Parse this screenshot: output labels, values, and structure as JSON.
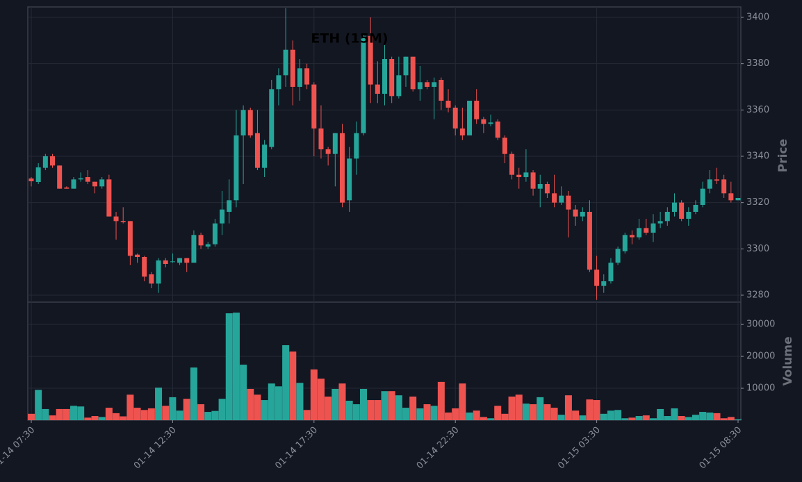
{
  "chart_data": {
    "type": "candlestick",
    "title": "ETH (15M)",
    "categories": [
      "01-14 07:30",
      null,
      null,
      null,
      null,
      null,
      null,
      null,
      null,
      null,
      null,
      null,
      null,
      null,
      null,
      null,
      null,
      null,
      null,
      null,
      "01-14 12:30",
      null,
      null,
      null,
      null,
      null,
      null,
      null,
      null,
      null,
      null,
      null,
      null,
      null,
      null,
      null,
      null,
      null,
      null,
      null,
      "01-14 17:30",
      null,
      null,
      null,
      null,
      null,
      null,
      null,
      null,
      null,
      null,
      null,
      null,
      null,
      null,
      null,
      null,
      null,
      null,
      null,
      "01-14 22:30",
      null,
      null,
      null,
      null,
      null,
      null,
      null,
      null,
      null,
      null,
      null,
      null,
      null,
      null,
      null,
      null,
      null,
      null,
      null,
      "01-15 03:30",
      null,
      null,
      null,
      null,
      null,
      null,
      null,
      null,
      null,
      null,
      null,
      null,
      null,
      null,
      null,
      null,
      null,
      null,
      null,
      "01-15 08:30"
    ],
    "open": [
      3330.4,
      3328.9,
      3335,
      3340,
      3336,
      3326.5,
      3326,
      3330,
      3331,
      3329,
      3327,
      3330,
      3314,
      3312,
      3312,
      3297.5,
      3296.5,
      3289,
      3285,
      3295,
      3294.5,
      3294,
      3296,
      3294,
      3306,
      3301,
      3302,
      3311,
      3316,
      3321,
      3349,
      3360,
      3350,
      3335,
      3344,
      3369,
      3375,
      3386,
      3370,
      3378,
      3371,
      3352,
      3343,
      3341,
      3350,
      3321,
      3339,
      3350,
      3392,
      3371,
      3367,
      3382,
      3366,
      3375,
      3383,
      3369,
      3372,
      3370,
      3373,
      3364,
      3361,
      3352,
      3349,
      3364,
      3356,
      3354,
      3355,
      3348,
      3341,
      3332,
      3331,
      3333,
      3326,
      3328,
      3324,
      3320,
      3323,
      3317,
      3314,
      3316,
      3291,
      3284,
      3286,
      3294,
      3299,
      3306,
      3305,
      3309,
      3307,
      3311,
      3312,
      3316,
      3320,
      3313,
      3316,
      3319,
      3326,
      3330,
      3330,
      3324,
      3321
    ],
    "high": [
      3331,
      3337,
      3341,
      3341,
      3336,
      3327,
      3331,
      3333,
      3334,
      3329,
      3331,
      3332,
      3316,
      3318,
      3312,
      3298,
      3297,
      3290,
      3296,
      3296,
      3298,
      3296,
      3296,
      3308,
      3307,
      3303,
      3313,
      3325,
      3330,
      3360,
      3362,
      3361,
      3360,
      3347,
      3373,
      3378,
      3404,
      3390,
      3382,
      3380,
      3372,
      3362,
      3344,
      3350,
      3354,
      3344,
      3355,
      3393,
      3400,
      3381,
      3388,
      3383,
      3383,
      3383,
      3383,
      3379,
      3373,
      3374,
      3374,
      3369,
      3362,
      3361,
      3364,
      3369,
      3357,
      3358,
      3356,
      3349,
      3342,
      3335,
      3343,
      3334,
      3332,
      3329,
      3332,
      3327,
      3325,
      3319,
      3318,
      3321,
      3297,
      3289,
      3296,
      3301,
      3307,
      3308,
      3313,
      3313,
      3315,
      3316,
      3318,
      3324,
      3321,
      3318,
      3321,
      3329,
      3334,
      3335,
      3332,
      3329,
      3322
    ],
    "low": [
      3327,
      3328,
      3334,
      3335,
      3326,
      3326,
      3326,
      3329,
      3328,
      3324,
      3326,
      3314,
      3304,
      3311,
      3293,
      3294,
      3286,
      3283,
      3281,
      3292,
      3294,
      3293,
      3290,
      3294,
      3300,
      3300,
      3301,
      3306,
      3311,
      3318,
      3328,
      3348,
      3334,
      3331,
      3343,
      3362,
      3370,
      3362,
      3364,
      3369,
      3340,
      3339,
      3336,
      3327,
      3318,
      3316,
      3332,
      3349,
      3363,
      3363,
      3362,
      3363,
      3365,
      3370,
      3368,
      3364,
      3369,
      3356,
      3360,
      3359,
      3349,
      3347,
      3349,
      3354,
      3350,
      3353,
      3347,
      3337,
      3330,
      3326,
      3329,
      3323,
      3318,
      3322,
      3318,
      3319,
      3305,
      3310,
      3312,
      3290,
      3278,
      3281,
      3285,
      3293,
      3298,
      3302,
      3304,
      3306,
      3303,
      3309,
      3310,
      3314,
      3312,
      3310,
      3315,
      3318,
      3324,
      3328,
      3322,
      3320,
      3321
    ],
    "close": [
      3329.2,
      3335.2,
      3340,
      3336,
      3326,
      3326,
      3330,
      3330.5,
      3329,
      3327,
      3330,
      3314,
      3312,
      3311.5,
      3297,
      3296.5,
      3288,
      3285,
      3295,
      3293.5,
      3294.6,
      3296,
      3294,
      3306,
      3301.5,
      3302,
      3311,
      3317,
      3321,
      3349,
      3360,
      3349,
      3335,
      3345,
      3369,
      3375,
      3386,
      3370,
      3378,
      3371,
      3352,
      3343,
      3341,
      3350,
      3320,
      3339,
      3350,
      3392,
      3371,
      3367,
      3382,
      3366,
      3375,
      3383,
      3369,
      3372,
      3370,
      3372,
      3364,
      3361,
      3352,
      3349,
      3364,
      3356,
      3354,
      3354.6,
      3348,
      3341,
      3332,
      3331,
      3333,
      3326,
      3328,
      3324,
      3320,
      3323,
      3317,
      3314,
      3316,
      3291,
      3284,
      3286,
      3294,
      3300,
      3306,
      3305,
      3309,
      3307,
      3311,
      3312,
      3316,
      3320,
      3313,
      3316,
      3319,
      3326,
      3330,
      3329.5,
      3324,
      3321,
      3322
    ],
    "volume": [
      2000,
      9500,
      3500,
      1500,
      3500,
      3500,
      4500,
      4300,
      800,
      1300,
      1000,
      3900,
      2200,
      1200,
      8000,
      3900,
      3200,
      3700,
      10200,
      4500,
      7200,
      3000,
      6700,
      16500,
      5000,
      2600,
      2900,
      6700,
      33500,
      33700,
      17400,
      9800,
      8000,
      6300,
      11500,
      10600,
      23500,
      21500,
      11700,
      3200,
      15900,
      13000,
      7400,
      9800,
      11500,
      6100,
      5000,
      9800,
      6300,
      6300,
      9100,
      9100,
      7800,
      3900,
      7400,
      3700,
      5000,
      4500,
      12000,
      2400,
      3700,
      11500,
      2400,
      3000,
      1000,
      600,
      4500,
      2000,
      7400,
      8000,
      5200,
      5000,
      7200,
      5000,
      3900,
      1700,
      7800,
      3000,
      1500,
      6500,
      6300,
      2000,
      3000,
      3200,
      600,
      800,
      1300,
      1500,
      600,
      3500,
      1300,
      3700,
      1300,
      1000,
      1700,
      2600,
      2400,
      2200,
      600,
      1000,
      300
    ],
    "up_color": "#26a69a",
    "down_color": "#ef5350",
    "ylabel": "Price",
    "ylim": [
      3277,
      3404.5
    ],
    "yticks": [
      3280,
      3300,
      3320,
      3340,
      3360,
      3380,
      3400
    ],
    "volume_ylabel": "Volume",
    "volume_ylim": [
      0,
      37000
    ],
    "volume_yticks": [
      10000,
      20000,
      30000
    ],
    "grid": true
  }
}
